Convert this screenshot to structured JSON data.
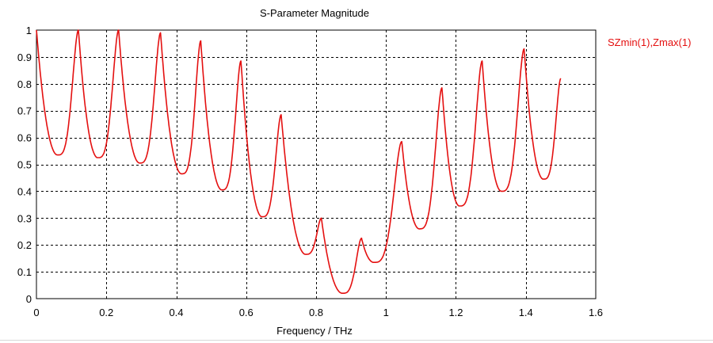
{
  "chart_data": {
    "type": "line",
    "title": "S-Parameter Magnitude",
    "xlabel": "Frequency / THz",
    "ylabel": "",
    "xlim": [
      0,
      1.6
    ],
    "ylim": [
      0,
      1
    ],
    "x_ticks": [
      "0",
      "0.2",
      "0.4",
      "0.6",
      "0.8",
      "1",
      "1.2",
      "1.4",
      "1.6"
    ],
    "y_ticks": [
      "0",
      "0.1",
      "0.2",
      "0.3",
      "0.4",
      "0.5",
      "0.6",
      "0.7",
      "0.8",
      "0.9",
      "1"
    ],
    "grid": true,
    "legend_position": "right-top",
    "series": [
      {
        "name": "SZmin(1),Zmax(1)",
        "color": "#e41010",
        "extrema": [
          [
            0.0,
            1.0
          ],
          [
            0.06,
            0.535
          ],
          [
            0.12,
            1.0
          ],
          [
            0.175,
            0.525
          ],
          [
            0.235,
            1.0
          ],
          [
            0.295,
            0.505
          ],
          [
            0.355,
            0.99
          ],
          [
            0.415,
            0.465
          ],
          [
            0.47,
            0.96
          ],
          [
            0.53,
            0.405
          ],
          [
            0.585,
            0.885
          ],
          [
            0.645,
            0.305
          ],
          [
            0.7,
            0.685
          ],
          [
            0.77,
            0.165
          ],
          [
            0.815,
            0.3
          ],
          [
            0.875,
            0.02
          ],
          [
            0.93,
            0.225
          ],
          [
            0.965,
            0.135
          ],
          [
            1.045,
            0.585
          ],
          [
            1.095,
            0.26
          ],
          [
            1.16,
            0.785
          ],
          [
            1.21,
            0.345
          ],
          [
            1.275,
            0.885
          ],
          [
            1.33,
            0.4
          ],
          [
            1.395,
            0.93
          ],
          [
            1.45,
            0.445
          ],
          [
            1.5,
            0.82
          ]
        ]
      }
    ]
  }
}
